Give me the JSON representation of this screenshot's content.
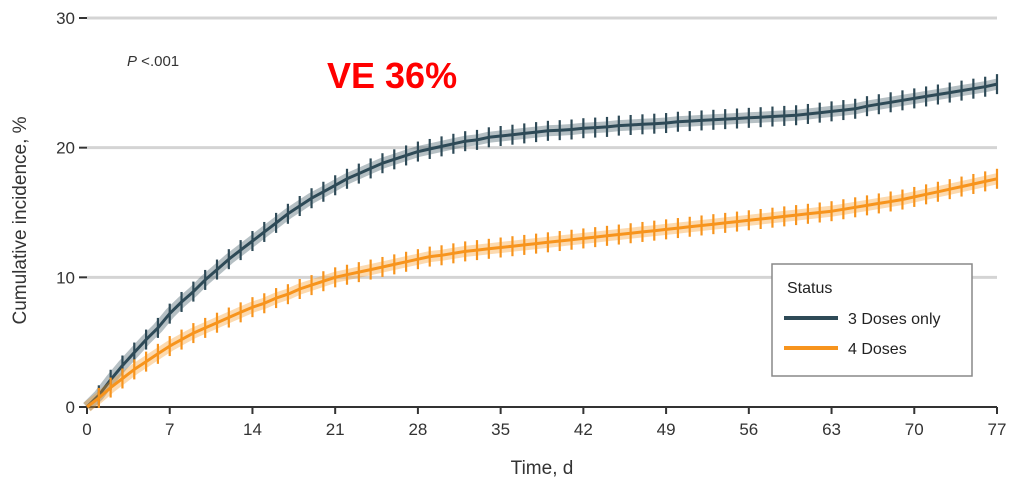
{
  "chart_data": {
    "type": "line",
    "xlabel": "Time, d",
    "ylabel": "Cumulative incidence, %",
    "xlim": [
      0,
      77
    ],
    "ylim": [
      0,
      30
    ],
    "x_ticks": [
      0,
      7,
      14,
      21,
      28,
      35,
      42,
      49,
      56,
      63,
      70,
      77
    ],
    "y_ticks": [
      0,
      10,
      20,
      30
    ],
    "grid": "horizontal",
    "legend": {
      "title": "Status",
      "position": "bottom-right"
    },
    "annotations": [
      {
        "name": "p-value",
        "italic": "P",
        "rest": " <.001"
      },
      {
        "name": "ve",
        "text": "VE 36%",
        "color": "#ff0000"
      }
    ],
    "x": [
      0,
      1,
      2,
      3,
      4,
      5,
      6,
      7,
      8,
      9,
      10,
      11,
      12,
      13,
      14,
      15,
      16,
      17,
      18,
      19,
      20,
      21,
      22,
      23,
      24,
      25,
      26,
      27,
      28,
      29,
      30,
      31,
      32,
      33,
      34,
      35,
      36,
      37,
      38,
      39,
      40,
      41,
      42,
      43,
      44,
      45,
      46,
      47,
      48,
      49,
      50,
      51,
      52,
      53,
      54,
      55,
      56,
      57,
      58,
      59,
      60,
      61,
      62,
      63,
      64,
      65,
      66,
      67,
      68,
      69,
      70,
      71,
      72,
      73,
      74,
      75,
      76,
      77
    ],
    "series": [
      {
        "name": "3 Doses only",
        "color": "#2e4a57",
        "values": [
          0,
          0.9,
          2.1,
          3.2,
          4.2,
          5.2,
          6.1,
          7.2,
          8.1,
          8.9,
          9.8,
          10.6,
          11.4,
          12.1,
          12.8,
          13.5,
          14.2,
          14.9,
          15.5,
          16.1,
          16.6,
          17.1,
          17.6,
          18.0,
          18.4,
          18.8,
          19.1,
          19.4,
          19.7,
          19.9,
          20.1,
          20.3,
          20.5,
          20.6,
          20.8,
          20.9,
          21.0,
          21.1,
          21.2,
          21.3,
          21.35,
          21.4,
          21.5,
          21.55,
          21.6,
          21.7,
          21.75,
          21.8,
          21.85,
          21.9,
          22.0,
          22.05,
          22.1,
          22.15,
          22.2,
          22.25,
          22.3,
          22.35,
          22.4,
          22.45,
          22.5,
          22.6,
          22.7,
          22.8,
          22.9,
          23.0,
          23.2,
          23.35,
          23.5,
          23.65,
          23.8,
          23.95,
          24.1,
          24.25,
          24.4,
          24.55,
          24.7,
          24.9
        ]
      },
      {
        "name": "4 Doses",
        "color": "#f7941d",
        "values": [
          0,
          0.7,
          1.5,
          2.2,
          2.9,
          3.5,
          4.1,
          4.7,
          5.2,
          5.7,
          6.1,
          6.5,
          6.9,
          7.3,
          7.7,
          8.0,
          8.4,
          8.7,
          9.1,
          9.4,
          9.7,
          10.0,
          10.2,
          10.4,
          10.6,
          10.8,
          11.0,
          11.2,
          11.4,
          11.6,
          11.7,
          11.85,
          12.0,
          12.1,
          12.2,
          12.3,
          12.4,
          12.5,
          12.6,
          12.7,
          12.8,
          12.9,
          13.0,
          13.1,
          13.2,
          13.3,
          13.4,
          13.5,
          13.6,
          13.7,
          13.8,
          13.9,
          14.0,
          14.1,
          14.2,
          14.3,
          14.4,
          14.5,
          14.6,
          14.7,
          14.8,
          14.9,
          15.0,
          15.1,
          15.25,
          15.4,
          15.55,
          15.7,
          15.85,
          16.0,
          16.2,
          16.4,
          16.6,
          16.8,
          17.0,
          17.2,
          17.4,
          17.6
        ]
      }
    ]
  }
}
